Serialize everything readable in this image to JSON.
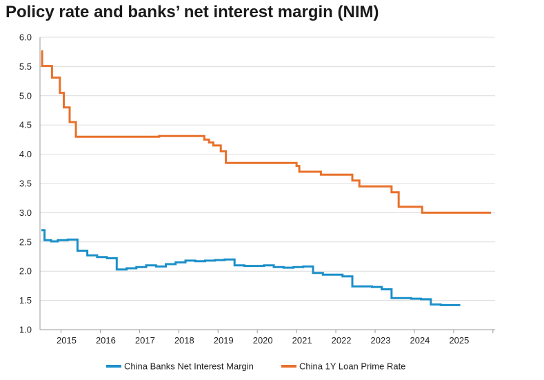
{
  "title": "Policy rate and banks’ net interest margin (NIM)",
  "chart_data": {
    "type": "line",
    "title": "Policy rate and banks’ net interest margin (NIM)",
    "xlabel": "",
    "ylabel": "",
    "xlim": [
      2014.5,
      2025.95
    ],
    "ylim": [
      1.0,
      6.0
    ],
    "y_ticks": [
      1.0,
      1.5,
      2.0,
      2.5,
      3.0,
      3.5,
      4.0,
      4.5,
      5.0,
      5.5,
      6.0
    ],
    "x_tick_labels": [
      "2015",
      "2016",
      "2017",
      "2018",
      "2019",
      "2020",
      "2021",
      "2022",
      "2023",
      "2024",
      "2025"
    ],
    "grid": true,
    "legend_position": "bottom",
    "line_style": "step",
    "series": [
      {
        "name": "China Banks Net Interest Margin",
        "color": "#1a8fc9",
        "points": [
          [
            2014.5,
            2.7
          ],
          [
            2014.58,
            2.53
          ],
          [
            2014.75,
            2.51
          ],
          [
            2014.92,
            2.53
          ],
          [
            2015.17,
            2.54
          ],
          [
            2015.42,
            2.35
          ],
          [
            2015.67,
            2.27
          ],
          [
            2015.92,
            2.24
          ],
          [
            2016.17,
            2.22
          ],
          [
            2016.42,
            2.03
          ],
          [
            2016.67,
            2.05
          ],
          [
            2016.92,
            2.07
          ],
          [
            2017.17,
            2.1
          ],
          [
            2017.42,
            2.08
          ],
          [
            2017.67,
            2.12
          ],
          [
            2017.92,
            2.15
          ],
          [
            2018.17,
            2.18
          ],
          [
            2018.42,
            2.17
          ],
          [
            2018.67,
            2.18
          ],
          [
            2018.92,
            2.19
          ],
          [
            2019.17,
            2.2
          ],
          [
            2019.42,
            2.1
          ],
          [
            2019.67,
            2.09
          ],
          [
            2019.92,
            2.09
          ],
          [
            2020.17,
            2.1
          ],
          [
            2020.42,
            2.07
          ],
          [
            2020.67,
            2.06
          ],
          [
            2020.92,
            2.07
          ],
          [
            2021.17,
            2.08
          ],
          [
            2021.42,
            1.97
          ],
          [
            2021.67,
            1.94
          ],
          [
            2021.92,
            1.94
          ],
          [
            2022.17,
            1.91
          ],
          [
            2022.42,
            1.74
          ],
          [
            2022.67,
            1.74
          ],
          [
            2022.92,
            1.73
          ],
          [
            2023.17,
            1.69
          ],
          [
            2023.42,
            1.54
          ],
          [
            2023.67,
            1.54
          ],
          [
            2023.92,
            1.53
          ],
          [
            2024.17,
            1.52
          ],
          [
            2024.42,
            1.43
          ],
          [
            2024.67,
            1.42
          ],
          [
            2024.92,
            1.42
          ],
          [
            2025.17,
            1.42
          ]
        ]
      },
      {
        "name": "China 1Y Loan Prime Rate",
        "color": "#e8702a",
        "points": [
          [
            2014.5,
            5.76
          ],
          [
            2014.52,
            5.51
          ],
          [
            2014.77,
            5.31
          ],
          [
            2014.97,
            5.05
          ],
          [
            2015.07,
            4.8
          ],
          [
            2015.22,
            4.55
          ],
          [
            2015.38,
            4.3
          ],
          [
            2017.5,
            4.31
          ],
          [
            2018.6,
            4.31
          ],
          [
            2018.65,
            4.25
          ],
          [
            2018.77,
            4.2
          ],
          [
            2018.88,
            4.15
          ],
          [
            2019.07,
            4.05
          ],
          [
            2019.2,
            3.85
          ],
          [
            2020.95,
            3.85
          ],
          [
            2021.0,
            3.8
          ],
          [
            2021.07,
            3.7
          ],
          [
            2021.62,
            3.65
          ],
          [
            2022.42,
            3.55
          ],
          [
            2022.6,
            3.45
          ],
          [
            2023.42,
            3.35
          ],
          [
            2023.6,
            3.1
          ],
          [
            2024.2,
            3.0
          ],
          [
            2025.95,
            3.0
          ]
        ]
      }
    ]
  }
}
